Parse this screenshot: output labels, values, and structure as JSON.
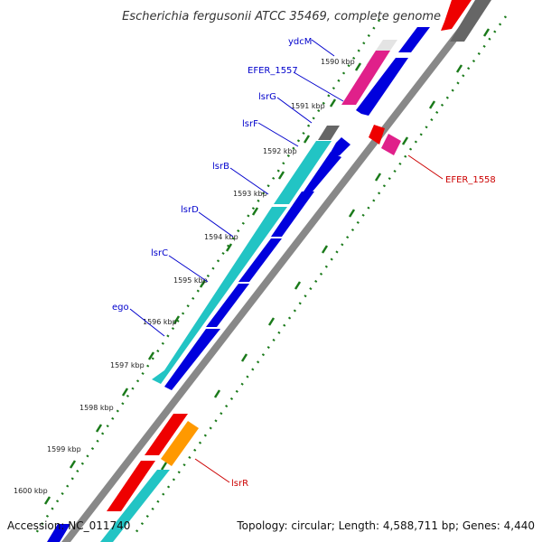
{
  "header": {
    "title": "Escherichia fergusonii ATCC 35469, complete genome"
  },
  "footer": {
    "accession": "Accession: NC_011740",
    "summary": "Topology: circular; Length: 4,588,711 bp; Genes: 4,440"
  },
  "colors": {
    "forward_label": "#0000cc",
    "reverse_label": "#cc0000",
    "tick_dots": "#1a7a1a",
    "backbone": "#888888",
    "blue": "#0000dd",
    "cyan": "#22c4c4",
    "red": "#ee0000",
    "magenta": "#e0208a",
    "grey": "#666666",
    "orange": "#ff9900"
  },
  "ticks": [
    "1590 kbp",
    "1591 kbp",
    "1592 kbp",
    "1593 kbp",
    "1594 kbp",
    "1595 kbp",
    "1596 kbp",
    "1597 kbp",
    "1598 kbp",
    "1599 kbp",
    "1600 kbp"
  ],
  "gene_labels": {
    "forward": [
      "ydcM",
      "EFER_1557",
      "lsrG",
      "lsrF",
      "lsrB",
      "lsrD",
      "lsrC",
      "ego"
    ],
    "reverse": [
      "EFER_1558",
      "lsrR"
    ]
  }
}
